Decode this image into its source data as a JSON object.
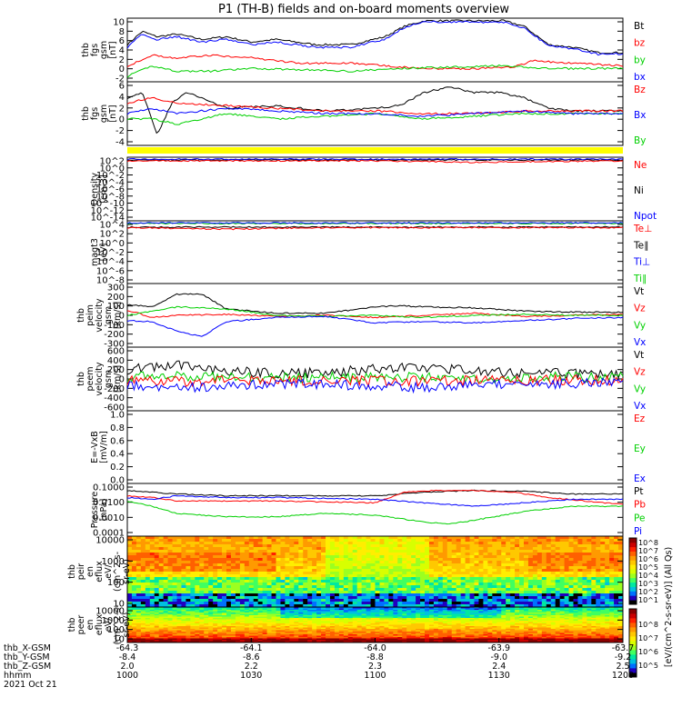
{
  "title": "P1 (TH-B) fields and on-board moments overview",
  "colors": {
    "black": "#000000",
    "red": "#ff0000",
    "green": "#00d000",
    "blue": "#0000ff",
    "yellow": "#ffff00"
  },
  "chart_data": [
    {
      "type": "line",
      "ylabel": [
        "thb",
        "fgs",
        "gsm",
        "[nT]"
      ],
      "yticks": [
        "10",
        "8",
        "6",
        "4",
        "2",
        "0",
        "-2"
      ],
      "ylim": [
        -2,
        10
      ],
      "legend": [
        {
          "name": "Bt",
          "color": "#000000"
        },
        {
          "name": "bz",
          "color": "#ff0000"
        },
        {
          "name": "by",
          "color": "#00d000"
        },
        {
          "name": "bx",
          "color": "#0000ff"
        }
      ],
      "series": [
        {
          "name": "Bt",
          "color": "#000000",
          "x": [
            0,
            0.03,
            0.06,
            0.1,
            0.15,
            0.2,
            0.25,
            0.3,
            0.38,
            0.45,
            0.52,
            0.56,
            0.6,
            0.68,
            0.76,
            0.8,
            0.85,
            0.9,
            0.95,
            1
          ],
          "y": [
            5,
            7.5,
            6.5,
            7,
            6,
            6.5,
            5.5,
            6,
            5,
            5,
            6.5,
            8.5,
            9.5,
            9.5,
            9.5,
            8.5,
            5,
            4.5,
            3.5,
            3.5
          ]
        },
        {
          "name": "bz",
          "color": "#ff0000",
          "x": [
            0,
            0.05,
            0.1,
            0.17,
            0.25,
            0.35,
            0.45,
            0.52,
            0.6,
            0.7,
            0.78,
            0.82,
            0.9,
            1
          ],
          "y": [
            1,
            3,
            2.5,
            3,
            2.5,
            1.5,
            1.5,
            1,
            0.5,
            0.5,
            0.8,
            2,
            1.5,
            1
          ]
        },
        {
          "name": "by",
          "color": "#00d000",
          "x": [
            0,
            0.05,
            0.1,
            0.17,
            0.25,
            0.35,
            0.45,
            0.55,
            0.65,
            0.75,
            0.85,
            1
          ],
          "y": [
            -1,
            1,
            0,
            0,
            0.5,
            0.3,
            0,
            0.5,
            0.8,
            1,
            0.5,
            0.5
          ]
        },
        {
          "name": "bx",
          "color": "#0000ff",
          "x": [
            0,
            0.03,
            0.06,
            0.1,
            0.15,
            0.2,
            0.25,
            0.3,
            0.38,
            0.45,
            0.52,
            0.56,
            0.6,
            0.68,
            0.76,
            0.8,
            0.85,
            0.9,
            0.95,
            1
          ],
          "y": [
            4.5,
            7,
            6,
            6.5,
            5.5,
            6,
            5,
            5.5,
            4.5,
            4.5,
            6,
            8.3,
            9.3,
            9.3,
            9.2,
            8.2,
            4.8,
            4.2,
            3.2,
            3.3
          ]
        }
      ]
    },
    {
      "type": "line",
      "ylabel": [
        "thb",
        "fgs",
        "gsm",
        "[nT]"
      ],
      "yticks": [
        "6",
        "4",
        "2",
        "0",
        "-2",
        "-4"
      ],
      "ylim": [
        -6,
        6
      ],
      "legend": [
        {
          "name": "Bz",
          "color": "#ff0000"
        },
        {
          "name": "Bx",
          "color": "#0000ff"
        },
        {
          "name": "By",
          "color": "#00d000"
        }
      ],
      "series": [
        {
          "name": "Bt",
          "color": "#000000",
          "x": [
            0,
            0.03,
            0.06,
            0.09,
            0.12,
            0.15,
            0.2,
            0.3,
            0.4,
            0.5,
            0.55,
            0.6,
            0.65,
            0.7,
            0.75,
            0.8,
            0.85,
            0.9,
            1
          ],
          "y": [
            3,
            4,
            -4,
            2,
            4,
            3,
            1,
            1.5,
            0.5,
            1,
            1.5,
            4,
            5,
            4,
            4,
            3,
            1,
            0.5,
            0.5
          ]
        },
        {
          "name": "Bz",
          "color": "#ff0000",
          "x": [
            0,
            0.05,
            0.1,
            0.2,
            0.3,
            0.4,
            0.5,
            0.6,
            0.7,
            0.8,
            0.9,
            1
          ],
          "y": [
            2,
            3,
            2,
            1.5,
            1,
            0.5,
            0.5,
            0,
            0,
            0.5,
            0.5,
            0.5
          ]
        },
        {
          "name": "By",
          "color": "#00d000",
          "x": [
            0,
            0.05,
            0.1,
            0.2,
            0.3,
            0.4,
            0.5,
            0.6,
            0.7,
            0.8,
            0.9,
            1
          ],
          "y": [
            -1,
            -1,
            -2,
            0,
            -1,
            -0.5,
            0,
            -1,
            -0.5,
            0,
            0,
            0
          ]
        },
        {
          "name": "Bx",
          "color": "#0000ff",
          "x": [
            0,
            0.05,
            0.1,
            0.2,
            0.3,
            0.4,
            0.5,
            0.6,
            0.7,
            0.8,
            0.9,
            1
          ],
          "y": [
            0,
            1,
            0,
            1,
            0.5,
            0,
            0,
            -0.5,
            0,
            0.5,
            0,
            0
          ]
        }
      ]
    },
    {
      "type": "line",
      "ylabel": [
        "Density",
        "[cm-3]"
      ],
      "yticks": [
        "10^2",
        "10^0",
        "10^-2",
        "10^-4",
        "10^-6",
        "10^-8",
        "10^-10",
        "10^-12",
        "10^-14"
      ],
      "ylim": [
        -14,
        2
      ],
      "legend": [
        {
          "name": "Ne",
          "color": "#ff0000"
        },
        {
          "name": "Ni",
          "color": "#000000"
        },
        {
          "name": "Npot",
          "color": "#0000ff"
        }
      ],
      "series": [
        {
          "name": "Ni",
          "color": "#000000",
          "x": [
            0,
            1
          ],
          "y": [
            1.3,
            1.3
          ]
        },
        {
          "name": "Ne",
          "color": "#ff0000",
          "x": [
            0,
            0.5,
            0.7,
            1
          ],
          "y": [
            1.1,
            1.1,
            0.7,
            1.1
          ]
        },
        {
          "name": "Npot",
          "color": "#0000ff",
          "x": [
            0,
            1
          ],
          "y": [
            1.5,
            1.5
          ]
        }
      ]
    },
    {
      "type": "line",
      "ylabel": [
        "magt3",
        "[eV]"
      ],
      "yticks": [
        "10^4",
        "10^2",
        "10^0",
        "10^-2",
        "10^-4",
        "10^-6",
        "10^-8"
      ],
      "ylim": [
        -8,
        4
      ],
      "legend": [
        {
          "name": "Te⊥",
          "color": "#ff0000"
        },
        {
          "name": "Te∥",
          "color": "#000000"
        },
        {
          "name": "Ti⊥",
          "color": "#0000ff"
        },
        {
          "name": "Ti∥",
          "color": "#00d000"
        }
      ],
      "series": [
        {
          "name": "Ti∥",
          "color": "#00d000",
          "x": [
            0,
            1
          ],
          "y": [
            3.5,
            3.5
          ]
        },
        {
          "name": "Ti⊥",
          "color": "#0000ff",
          "x": [
            0,
            1
          ],
          "y": [
            3.6,
            3.6
          ]
        },
        {
          "name": "Te∥",
          "color": "#000000",
          "x": [
            0,
            1
          ],
          "y": [
            2.8,
            2.8
          ]
        },
        {
          "name": "Te⊥",
          "color": "#ff0000",
          "x": [
            0,
            0.2,
            0.4,
            1
          ],
          "y": [
            2.7,
            2.4,
            2.7,
            2.7
          ]
        }
      ]
    },
    {
      "type": "line",
      "ylabel": [
        "thb",
        "peim",
        "velocity",
        "gsm",
        "[km/s]"
      ],
      "yticks": [
        "300",
        "200",
        "100",
        "0",
        "-100",
        "-200",
        "-300"
      ],
      "ylim": [
        -300,
        300
      ],
      "legend": [
        {
          "name": "Vt",
          "color": "#000000"
        },
        {
          "name": "Vz",
          "color": "#ff0000"
        },
        {
          "name": "Vy",
          "color": "#00d000"
        },
        {
          "name": "Vx",
          "color": "#0000ff"
        }
      ],
      "series": [
        {
          "name": "Vt",
          "color": "#000000",
          "x": [
            0,
            0.05,
            0.1,
            0.15,
            0.2,
            0.3,
            0.4,
            0.5,
            0.55,
            0.6,
            0.7,
            0.8,
            0.9,
            1
          ],
          "y": [
            100,
            80,
            200,
            200,
            60,
            20,
            20,
            80,
            90,
            80,
            70,
            40,
            30,
            30
          ]
        },
        {
          "name": "Vz",
          "color": "#ff0000",
          "x": [
            0,
            0.05,
            0.1,
            0.2,
            0.3,
            0.4,
            0.5,
            0.6,
            0.7,
            0.8,
            0.9,
            1
          ],
          "y": [
            50,
            -20,
            0,
            10,
            -10,
            0,
            -20,
            0,
            20,
            -10,
            0,
            10
          ]
        },
        {
          "name": "Vy",
          "color": "#00d000",
          "x": [
            0,
            0.05,
            0.1,
            0.2,
            0.3,
            0.4,
            0.5,
            0.6,
            0.7,
            0.8,
            0.9,
            1
          ],
          "y": [
            0,
            40,
            80,
            60,
            0,
            -10,
            0,
            -20,
            0,
            10,
            0,
            0
          ]
        },
        {
          "name": "Vx",
          "color": "#0000ff",
          "x": [
            0,
            0.05,
            0.1,
            0.15,
            0.2,
            0.3,
            0.4,
            0.5,
            0.6,
            0.7,
            0.8,
            0.9,
            1
          ],
          "y": [
            -50,
            -60,
            -150,
            -200,
            -60,
            -20,
            -10,
            -70,
            -60,
            -70,
            -50,
            -30,
            -20
          ]
        }
      ]
    },
    {
      "type": "line",
      "ylabel": [
        "thb",
        "peem",
        "velocity",
        "gsm",
        "[km/s]"
      ],
      "yticks": [
        "600",
        "400",
        "200",
        "0",
        "-200",
        "-400",
        "-600"
      ],
      "ylim": [
        -600,
        600
      ],
      "legend": [
        {
          "name": "Vt",
          "color": "#000000"
        },
        {
          "name": "Vz",
          "color": "#ff0000"
        },
        {
          "name": "Vy",
          "color": "#00d000"
        },
        {
          "name": "Vx",
          "color": "#0000ff"
        }
      ],
      "series": [
        {
          "name": "Vt",
          "color": "#000000",
          "x": [
            0,
            0.1,
            0.2,
            0.3,
            0.4,
            0.5,
            0.6,
            0.7,
            0.8,
            0.9,
            1
          ],
          "y": [
            180,
            260,
            150,
            100,
            120,
            180,
            220,
            150,
            120,
            100,
            110
          ]
        },
        {
          "name": "Vy",
          "color": "#00d000",
          "x": [
            0,
            0.1,
            0.2,
            0.3,
            0.5,
            0.7,
            0.9,
            1
          ],
          "y": [
            40,
            60,
            40,
            20,
            40,
            20,
            40,
            30
          ]
        },
        {
          "name": "Vz",
          "color": "#ff0000",
          "x": [
            0,
            0.1,
            0.2,
            0.3,
            0.5,
            0.7,
            0.9,
            1
          ],
          "y": [
            -20,
            -50,
            -30,
            -20,
            -40,
            -30,
            -20,
            -20
          ]
        },
        {
          "name": "Vx",
          "color": "#0000ff",
          "x": [
            0,
            0.1,
            0.2,
            0.3,
            0.5,
            0.6,
            0.7,
            0.9,
            1
          ],
          "y": [
            -100,
            -180,
            -120,
            -80,
            -130,
            -170,
            -110,
            -80,
            -80
          ]
        }
      ]
    },
    {
      "type": "line",
      "ylabel": [
        "E=-VxB",
        "[mV/m]"
      ],
      "yticks": [
        "1.0",
        "0.8",
        "0.6",
        "0.4",
        "0.2",
        "0.0"
      ],
      "ylim": [
        0,
        1
      ],
      "legend": [
        {
          "name": "Ez",
          "color": "#ff0000"
        },
        {
          "name": "Ey",
          "color": "#00d000"
        },
        {
          "name": "Ex",
          "color": "#0000ff"
        }
      ],
      "series": []
    },
    {
      "type": "line",
      "ylabel": [
        "Pressure",
        "[nPa]"
      ],
      "yticks": [
        "0.1000",
        "0.0100",
        "0.0010",
        "0.0001"
      ],
      "ylim": [
        -4,
        -1
      ],
      "legend": [
        {
          "name": "Pt",
          "color": "#000000"
        },
        {
          "name": "Pb",
          "color": "#ff0000"
        },
        {
          "name": "Pe",
          "color": "#00d000"
        },
        {
          "name": "Pi",
          "color": "#0000ff"
        }
      ],
      "series": [
        {
          "name": "Pt",
          "color": "#000000",
          "x": [
            0,
            0.1,
            0.2,
            0.3,
            0.5,
            0.6,
            0.7,
            0.8,
            0.9,
            1
          ],
          "y": [
            -1.4,
            -1.6,
            -1.7,
            -1.7,
            -1.7,
            -1.5,
            -1.4,
            -1.45,
            -1.6,
            -1.6
          ]
        },
        {
          "name": "Pb",
          "color": "#ff0000",
          "x": [
            0,
            0.05,
            0.1,
            0.2,
            0.3,
            0.5,
            0.56,
            0.62,
            0.7,
            0.78,
            0.85,
            1
          ],
          "y": [
            -1.7,
            -1.8,
            -2,
            -2,
            -2,
            -2.1,
            -1.5,
            -1.4,
            -1.4,
            -1.5,
            -1.8,
            -2.2
          ]
        },
        {
          "name": "Pi",
          "color": "#0000ff",
          "x": [
            0,
            0.05,
            0.1,
            0.2,
            0.3,
            0.5,
            0.6,
            0.7,
            0.8,
            0.9,
            1
          ],
          "y": [
            -1.8,
            -1.9,
            -1.7,
            -1.8,
            -1.8,
            -1.9,
            -2.1,
            -2.3,
            -2.1,
            -1.9,
            -1.9
          ]
        },
        {
          "name": "Pe",
          "color": "#00d000",
          "x": [
            0,
            0.05,
            0.1,
            0.2,
            0.3,
            0.4,
            0.5,
            0.6,
            0.65,
            0.7,
            0.8,
            0.9,
            1
          ],
          "y": [
            -2,
            -2.3,
            -2.7,
            -2.9,
            -2.9,
            -2.7,
            -2.8,
            -3.2,
            -3.3,
            -3.1,
            -2.6,
            -2.3,
            -2.3
          ]
        }
      ]
    },
    {
      "type": "heatmap",
      "ylabel": [
        "thb",
        "peir",
        "en",
        "eflux",
        "eV/",
        "(cm^2-s-",
        "sr-eV)"
      ],
      "yticks": [
        "10000",
        "1000",
        "100",
        "10"
      ]
    },
    {
      "type": "heatmap",
      "ylabel": [
        "thb",
        "peer",
        "en",
        "eflux",
        "eV/",
        "(cm^2-s-",
        "sr-eV)"
      ],
      "yticks": [
        "10000",
        "1000",
        "100",
        "10"
      ]
    }
  ],
  "colorbar": {
    "label": "[eV/(cm^2-s-sr-eV)] (All Qs)",
    "ticks_top": [
      "10^8",
      "10^7",
      "10^6",
      "10^5",
      "10^4",
      "10^3",
      "10^2",
      "10^1"
    ],
    "ticks_bottom": [
      "10^8",
      "10^7",
      "10^6",
      "10^5"
    ]
  },
  "x_axis": {
    "row_labels": [
      "thb_X-GSM",
      "thb_Y-GSM",
      "thb_Z-GSM",
      "hhmm",
      "2021 Oct 21"
    ],
    "columns": [
      {
        "x": "-64.3",
        "y": "-8.4",
        "z": "2.0",
        "t": "1000"
      },
      {
        "x": "-64.1",
        "y": "-8.6",
        "z": "2.2",
        "t": "1030"
      },
      {
        "x": "-64.0",
        "y": "-8.8",
        "z": "2.3",
        "t": "1100"
      },
      {
        "x": "-63.9",
        "y": "-9.0",
        "z": "2.4",
        "t": "1130"
      },
      {
        "x": "-63.7",
        "y": "-9.2",
        "z": "2.5",
        "t": "1200"
      }
    ]
  }
}
